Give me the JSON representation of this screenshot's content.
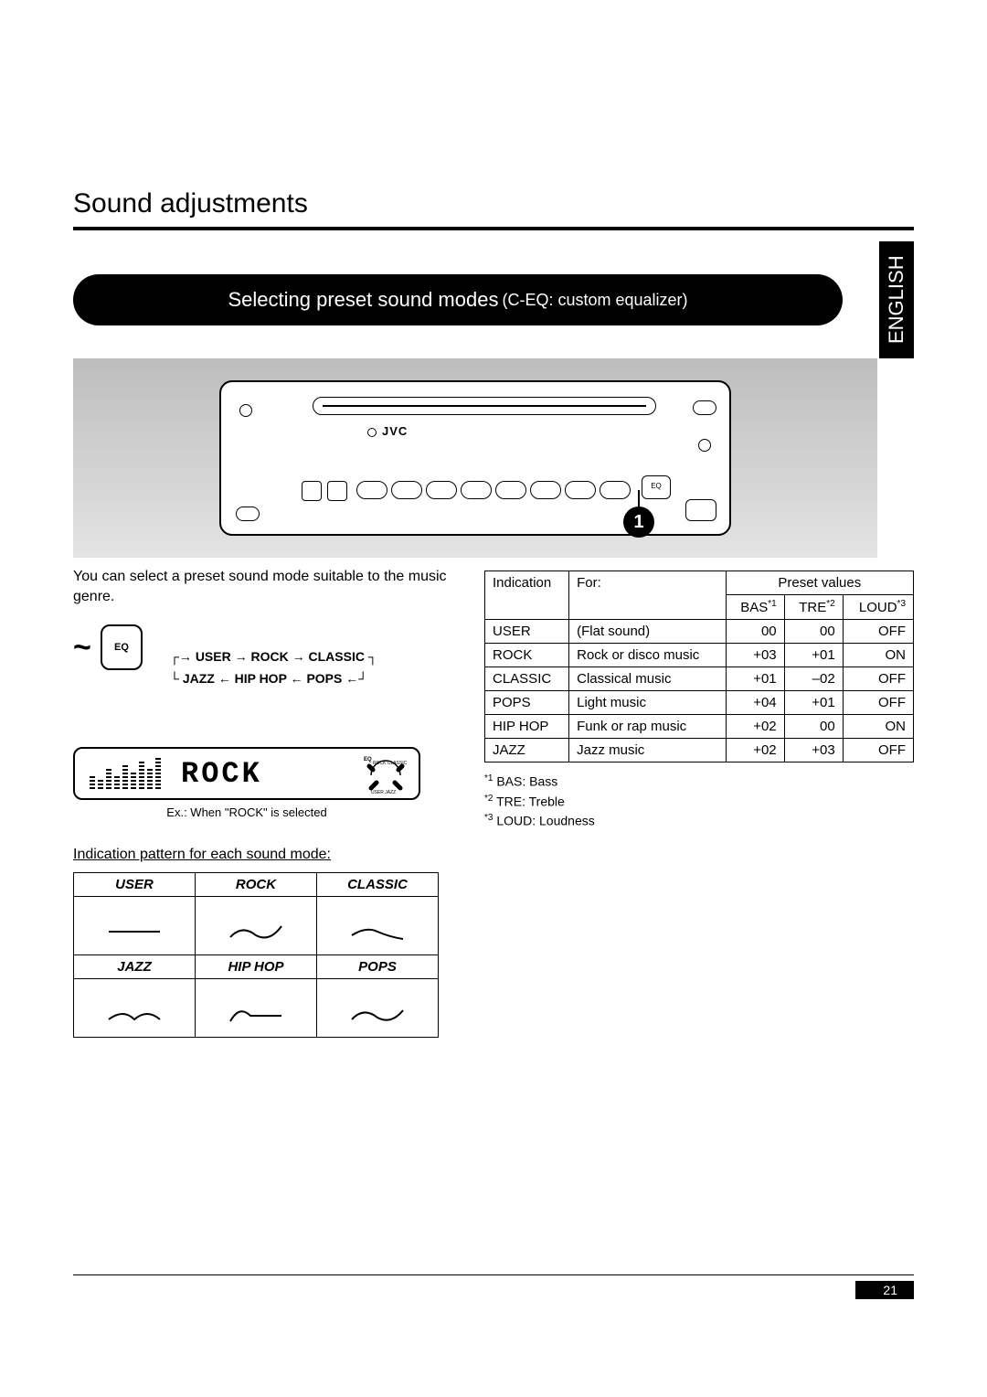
{
  "page": {
    "title": "Sound adjustments",
    "lang_tab": "ENGLISH",
    "page_number": "21"
  },
  "section": {
    "heading": "Selecting preset sound modes",
    "subheading": "(C-EQ: custom equalizer)",
    "callout_number": "1",
    "device_brand": "JVC",
    "eq_button_label": "EQ"
  },
  "intro": "You can select a preset sound mode suitable to the music genre.",
  "eq_key_label": "EQ",
  "cycle": {
    "line1_a": "USER",
    "line1_b": "ROCK",
    "line1_c": "CLASSIC",
    "line2_a": "JAZZ",
    "line2_b": "HIP HOP",
    "line2_c": "POPS"
  },
  "lcd": {
    "text": "ROCK",
    "caption": "Ex.: When \"ROCK\" is selected"
  },
  "pattern": {
    "label": "Indication pattern for each sound mode:",
    "headers": [
      "USER",
      "ROCK",
      "CLASSIC",
      "JAZZ",
      "HIP HOP",
      "POPS"
    ]
  },
  "preset_table": {
    "col_indication": "Indication",
    "col_for": "For:",
    "col_group": "Preset values",
    "col_bas": "BAS",
    "col_tre": "TRE",
    "col_loud": "LOUD",
    "sup1": "*1",
    "sup2": "*2",
    "sup3": "*3",
    "rows": [
      {
        "ind": "USER",
        "for": "(Flat sound)",
        "bas": "00",
        "tre": "00",
        "loud": "OFF"
      },
      {
        "ind": "ROCK",
        "for": "Rock or disco music",
        "bas": "+03",
        "tre": "+01",
        "loud": "ON"
      },
      {
        "ind": "CLASSIC",
        "for": "Classical music",
        "bas": "+01",
        "tre": "–02",
        "loud": "OFF"
      },
      {
        "ind": "POPS",
        "for": "Light music",
        "bas": "+04",
        "tre": "+01",
        "loud": "OFF"
      },
      {
        "ind": "HIP HOP",
        "for": "Funk or rap music",
        "bas": "+02",
        "tre": "00",
        "loud": "ON"
      },
      {
        "ind": "JAZZ",
        "for": "Jazz music",
        "bas": "+02",
        "tre": "+03",
        "loud": "OFF"
      }
    ]
  },
  "footnotes": {
    "f1": "BAS: Bass",
    "f2": "TRE: Treble",
    "f3": "LOUD: Loudness"
  },
  "colors": {
    "text": "#000000",
    "bg": "#ffffff",
    "panel_grad_top": "#bdbdbd",
    "panel_grad_bot": "#e4e4e4"
  }
}
